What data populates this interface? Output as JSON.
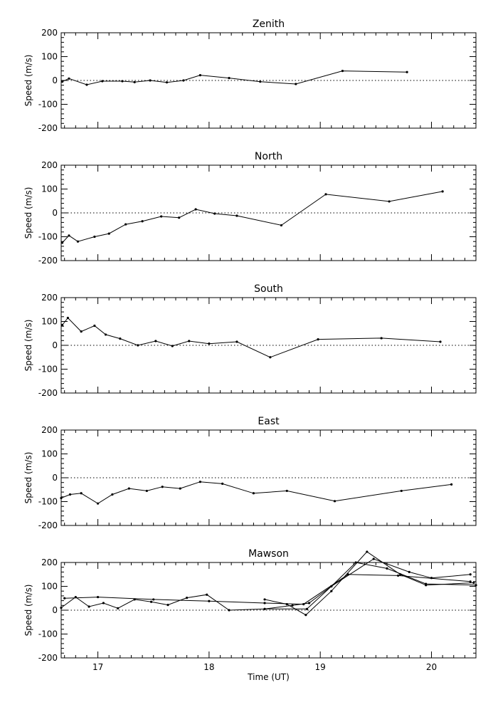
{
  "chart_data": [
    {
      "type": "line",
      "title": "Zenith",
      "ylabel": "Speed (m/s)",
      "xlabel": "",
      "xlim": [
        16.67,
        20.4
      ],
      "ylim": [
        -200,
        200
      ],
      "yticks": [
        -200,
        -100,
        0,
        100,
        200
      ],
      "xticks": [
        17,
        18,
        19,
        20
      ],
      "show_xtick_labels": false,
      "series": [
        {
          "x": [
            16.68,
            16.74,
            16.9,
            17.04,
            17.22,
            17.33,
            17.47,
            17.62,
            17.77,
            17.92,
            18.18,
            18.46,
            18.78,
            19.2,
            19.78
          ],
          "y": [
            -5,
            8,
            -18,
            -3,
            -3,
            -7,
            0,
            -8,
            0,
            22,
            10,
            -5,
            -15,
            40,
            35
          ]
        }
      ]
    },
    {
      "type": "line",
      "title": "North",
      "ylabel": "Speed (m/s)",
      "xlabel": "",
      "xlim": [
        16.67,
        20.4
      ],
      "ylim": [
        -200,
        200
      ],
      "yticks": [
        -200,
        -100,
        0,
        100,
        200
      ],
      "xticks": [
        17,
        18,
        19,
        20
      ],
      "show_xtick_labels": false,
      "series": [
        {
          "x": [
            16.68,
            16.74,
            16.82,
            16.97,
            17.1,
            17.25,
            17.4,
            17.57,
            17.73,
            17.88,
            18.05,
            18.25,
            18.65,
            19.05,
            19.62,
            20.1
          ],
          "y": [
            -125,
            -95,
            -120,
            -100,
            -87,
            -48,
            -35,
            -15,
            -20,
            15,
            -3,
            -12,
            -52,
            78,
            48,
            90
          ]
        }
      ]
    },
    {
      "type": "line",
      "title": "South",
      "ylabel": "Speed (m/s)",
      "xlabel": "",
      "xlim": [
        16.67,
        20.4
      ],
      "ylim": [
        -200,
        200
      ],
      "yticks": [
        -200,
        -100,
        0,
        100,
        200
      ],
      "xticks": [
        17,
        18,
        19,
        20
      ],
      "show_xtick_labels": false,
      "series": [
        {
          "x": [
            16.68,
            16.73,
            16.85,
            16.97,
            17.07,
            17.2,
            17.36,
            17.52,
            17.67,
            17.82,
            18.0,
            18.25,
            18.55,
            18.98,
            19.55,
            20.08
          ],
          "y": [
            85,
            115,
            58,
            82,
            45,
            28,
            0,
            18,
            -3,
            18,
            7,
            15,
            -50,
            25,
            30,
            15
          ]
        }
      ]
    },
    {
      "type": "line",
      "title": "East",
      "ylabel": "Speed (m/s)",
      "xlabel": "",
      "xlim": [
        16.67,
        20.4
      ],
      "ylim": [
        -200,
        200
      ],
      "yticks": [
        -200,
        -100,
        0,
        100,
        200
      ],
      "xticks": [
        17,
        18,
        19,
        20
      ],
      "show_xtick_labels": false,
      "series": [
        {
          "x": [
            16.67,
            16.75,
            16.85,
            17.0,
            17.13,
            17.28,
            17.44,
            17.58,
            17.74,
            17.92,
            18.12,
            18.4,
            18.7,
            19.13,
            19.73,
            20.18
          ],
          "y": [
            -85,
            -70,
            -65,
            -108,
            -70,
            -45,
            -55,
            -38,
            -45,
            -17,
            -25,
            -65,
            -55,
            -98,
            -55,
            -28
          ]
        }
      ]
    },
    {
      "type": "line",
      "title": "Mawson",
      "ylabel": "Speed (m/s)",
      "xlabel": "Time (UT)",
      "xlim": [
        16.67,
        20.4
      ],
      "ylim": [
        -200,
        200
      ],
      "yticks": [
        -200,
        -100,
        0,
        100,
        200
      ],
      "xticks": [
        17,
        18,
        19,
        20
      ],
      "xtick_labels": [
        "17",
        "18",
        "19",
        "20"
      ],
      "show_xtick_labels": true,
      "series": [
        {
          "x": [
            16.67,
            16.8,
            16.92,
            17.05,
            17.18,
            17.33,
            17.48,
            17.63,
            17.8,
            17.98,
            18.18,
            18.5,
            18.75,
            18.9,
            19.1,
            19.32,
            19.6,
            19.95,
            20.4
          ],
          "y": [
            10,
            55,
            15,
            30,
            8,
            45,
            35,
            22,
            52,
            65,
            0,
            5,
            20,
            30,
            100,
            200,
            175,
            110,
            105
          ]
        },
        {
          "x": [
            16.7,
            17.0,
            17.5,
            18.0,
            18.5,
            18.85,
            19.25,
            19.7,
            20.35
          ],
          "y": [
            50,
            55,
            45,
            38,
            30,
            25,
            150,
            145,
            120
          ]
        },
        {
          "x": [
            18.5,
            18.7,
            18.87,
            19.1,
            19.42,
            19.72,
            19.95,
            20.38
          ],
          "y": [
            45,
            25,
            -20,
            80,
            245,
            150,
            105,
            115
          ]
        },
        {
          "x": [
            18.5,
            18.88,
            19.1,
            19.48,
            19.8,
            20.0,
            20.35
          ],
          "y": [
            5,
            5,
            100,
            215,
            160,
            135,
            150
          ]
        }
      ]
    }
  ]
}
